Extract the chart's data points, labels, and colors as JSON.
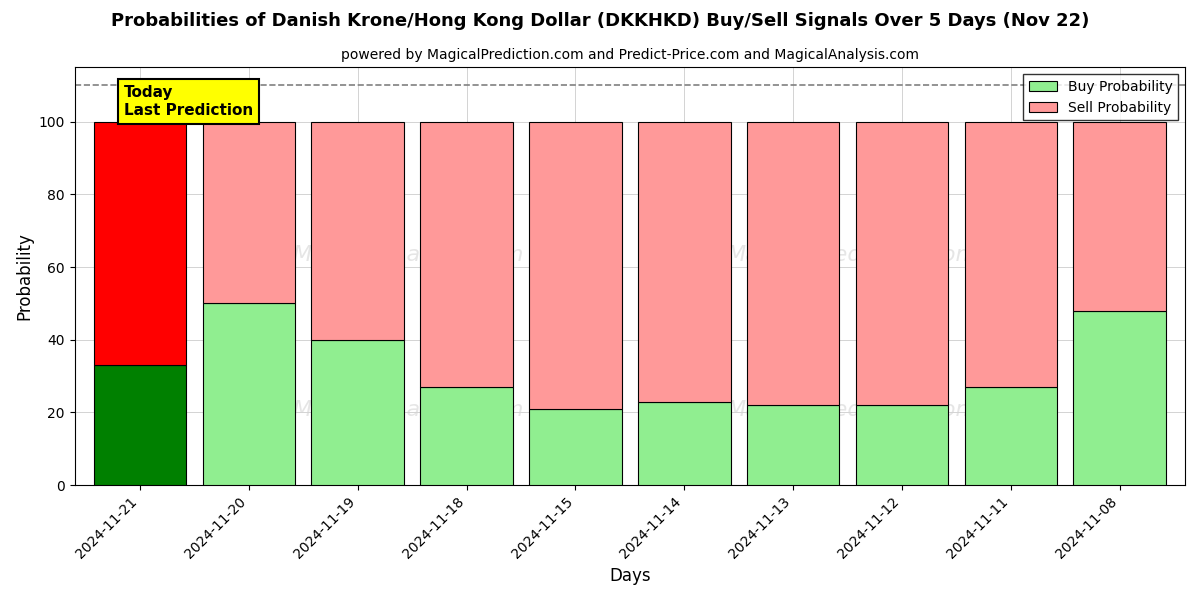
{
  "title": "Probabilities of Danish Krone/Hong Kong Dollar (DKKHKD) Buy/Sell Signals Over 5 Days (Nov 22)",
  "subtitle": "powered by MagicalPrediction.com and Predict-Price.com and MagicalAnalysis.com",
  "xlabel": "Days",
  "ylabel": "Probability",
  "categories": [
    "2024-11-21",
    "2024-11-20",
    "2024-11-19",
    "2024-11-18",
    "2024-11-15",
    "2024-11-14",
    "2024-11-13",
    "2024-11-12",
    "2024-11-11",
    "2024-11-08"
  ],
  "buy_values": [
    33,
    50,
    40,
    27,
    21,
    23,
    22,
    22,
    27,
    48
  ],
  "sell_values": [
    67,
    50,
    60,
    73,
    79,
    77,
    78,
    78,
    73,
    52
  ],
  "buy_colors": [
    "#008000",
    "#90EE90",
    "#90EE90",
    "#90EE90",
    "#90EE90",
    "#90EE90",
    "#90EE90",
    "#90EE90",
    "#90EE90",
    "#90EE90"
  ],
  "sell_colors": [
    "#FF0000",
    "#FF9999",
    "#FF9999",
    "#FF9999",
    "#FF9999",
    "#FF9999",
    "#FF9999",
    "#FF9999",
    "#FF9999",
    "#FF9999"
  ],
  "today_label": "Today\nLast Prediction",
  "today_index": 0,
  "ylim": [
    0,
    115
  ],
  "yticks": [
    0,
    20,
    40,
    60,
    80,
    100
  ],
  "dashed_line_y": 110,
  "legend_buy_color": "#90EE90",
  "legend_sell_color": "#FF9999",
  "legend_buy_label": "Buy Probability",
  "legend_sell_label": "Sell Probability",
  "background_color": "#ffffff",
  "bar_width": 0.85,
  "edge_color": "#000000"
}
